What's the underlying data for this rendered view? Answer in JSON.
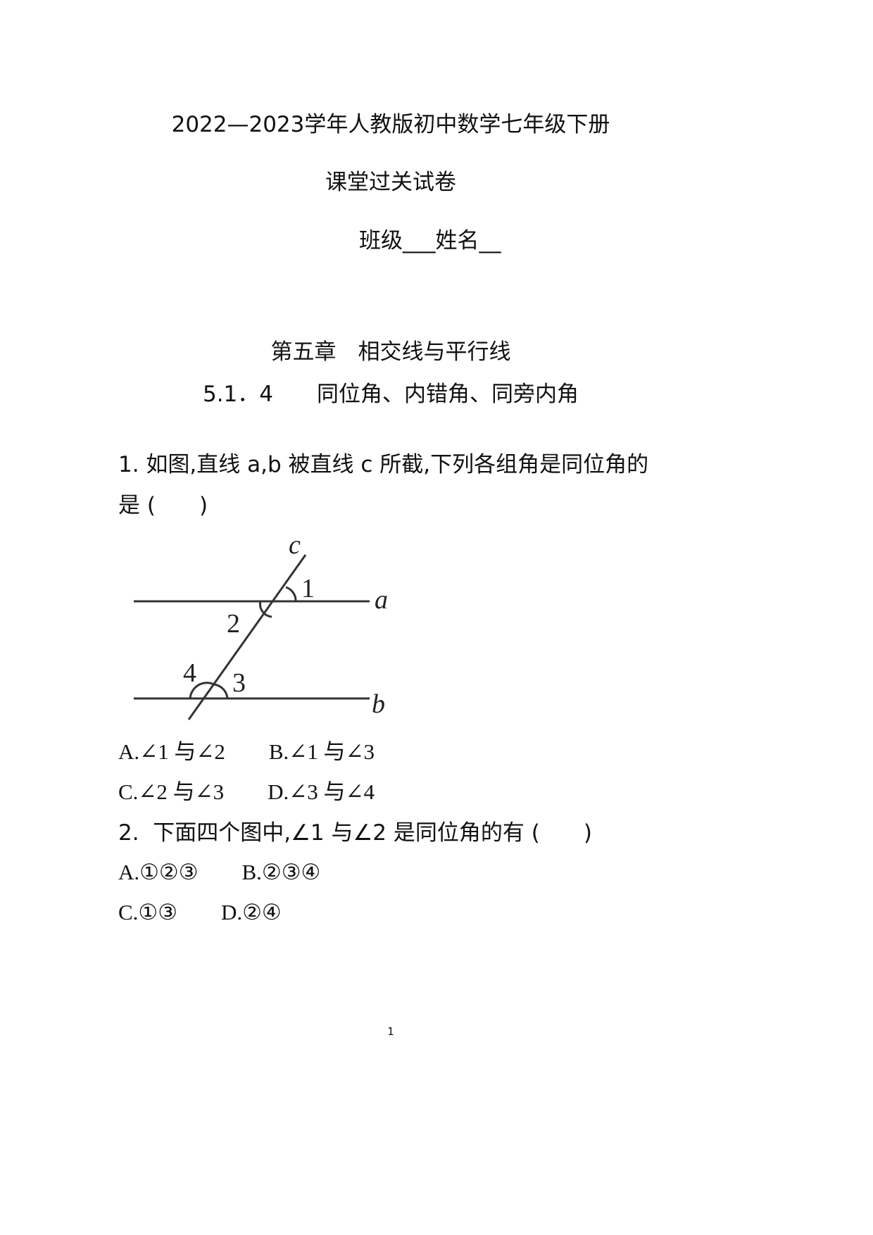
{
  "header": {
    "title": "2022—2023学年人教版初中数学七年级下册",
    "subtitle": "课堂过关试卷",
    "class_name_line": "班级___姓名__"
  },
  "chapter": {
    "title": "第五章　相交线与平行线",
    "section": "5.1．4　　同位角、内错角、同旁内角"
  },
  "questions": [
    {
      "stem_line1": "1. 如图,直线 a,b 被直线 c 所截,下列各组角是同位角的",
      "stem_line2": "是 (　　)",
      "figure_labels": {
        "c": "c",
        "a": "a",
        "b": "b",
        "angle1": "1",
        "angle2": "2",
        "angle3": "3",
        "angle4": "4"
      },
      "options_row1": "A.∠1 与∠2　　B.∠1 与∠3",
      "options_row2": "C.∠2 与∠3　　D.∠3 与∠4"
    },
    {
      "stem_line1": "2.  下面四个图中,∠1 与∠2 是同位角的有 (　　)",
      "options_row1": "A.①②③　　B.②③④",
      "options_row2": "C.①③　　D.②④"
    }
  ],
  "footer": {
    "page_number": "1"
  }
}
